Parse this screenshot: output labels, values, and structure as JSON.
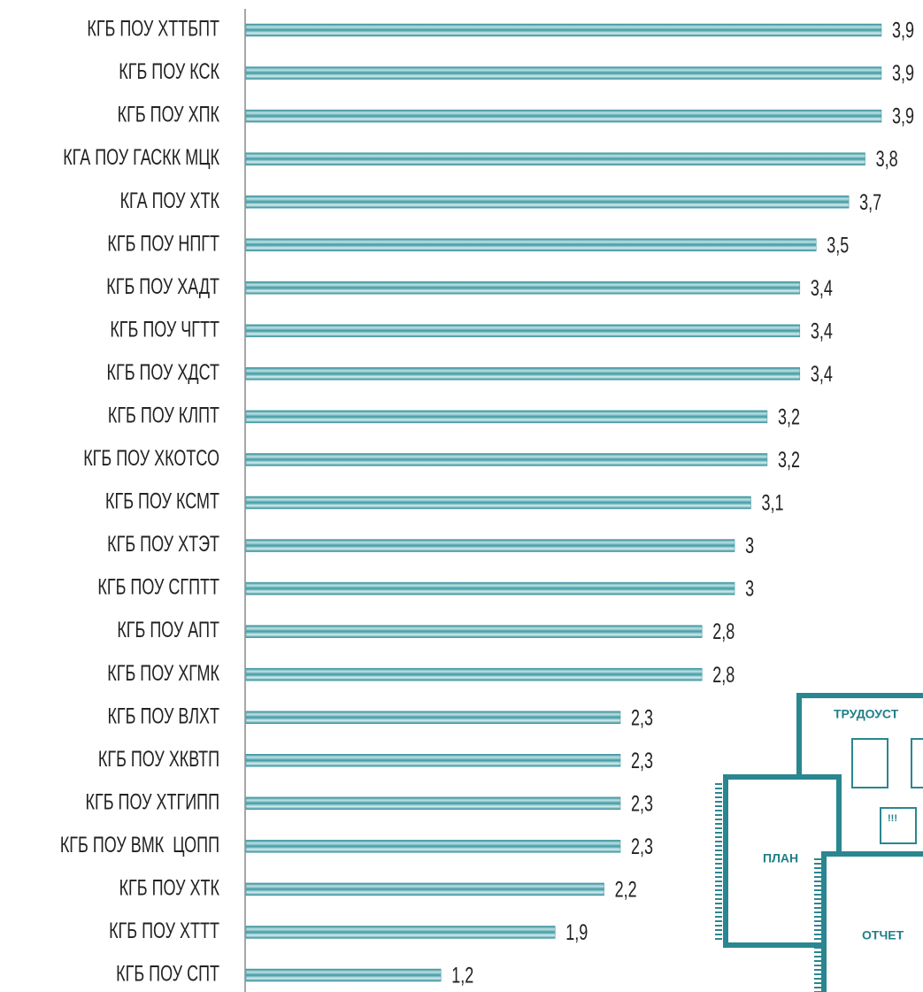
{
  "chart_data": {
    "type": "bar",
    "orientation": "horizontal",
    "categories": [
      "КГБ ПОУ ХТТБПТ",
      "КГБ ПОУ КСК",
      "КГБ ПОУ ХПК",
      "КГА ПОУ ГАСКК МЦК",
      "КГА ПОУ ХТК",
      "КГБ ПОУ НПГТ",
      "КГБ ПОУ ХАДТ",
      "КГБ ПОУ ЧГТТ",
      "КГБ ПОУ ХДСТ",
      "КГБ ПОУ КЛПТ",
      "КГБ ПОУ ХКОТСО",
      "КГБ ПОУ КСМТ",
      "КГБ ПОУ ХТЭТ",
      "КГБ ПОУ СГПТТ",
      "КГБ ПОУ АПТ",
      "КГБ ПОУ ХГМК",
      "КГБ ПОУ ВЛХТ",
      "КГБ ПОУ ХКВТП",
      "КГБ ПОУ ХТГИПП",
      "КГБ ПОУ ВМК  ЦОПП",
      "КГБ ПОУ ХТК",
      "КГБ ПОУ ХТТТ",
      "КГБ ПОУ СПТ"
    ],
    "values": [
      3.9,
      3.9,
      3.9,
      3.8,
      3.7,
      3.5,
      3.4,
      3.4,
      3.4,
      3.2,
      3.2,
      3.1,
      3,
      3,
      2.8,
      2.8,
      2.3,
      2.3,
      2.3,
      2.3,
      2.2,
      1.9,
      1.2
    ],
    "value_labels": [
      "3,9",
      "3,9",
      "3,9",
      "3,8",
      "3,7",
      "3,5",
      "3,4",
      "3,4",
      "3,4",
      "3,2",
      "3,2",
      "3,1",
      "3",
      "3",
      "2,8",
      "2,8",
      "2,3",
      "2,3",
      "2,3",
      "2,3",
      "2,2",
      "1,9",
      "1,2"
    ],
    "color": "#3f98a2",
    "annotations": [
      "ТРУДОУСТ",
      "ПЛАН",
      "ОТЧЕТ",
      "!!!"
    ]
  }
}
